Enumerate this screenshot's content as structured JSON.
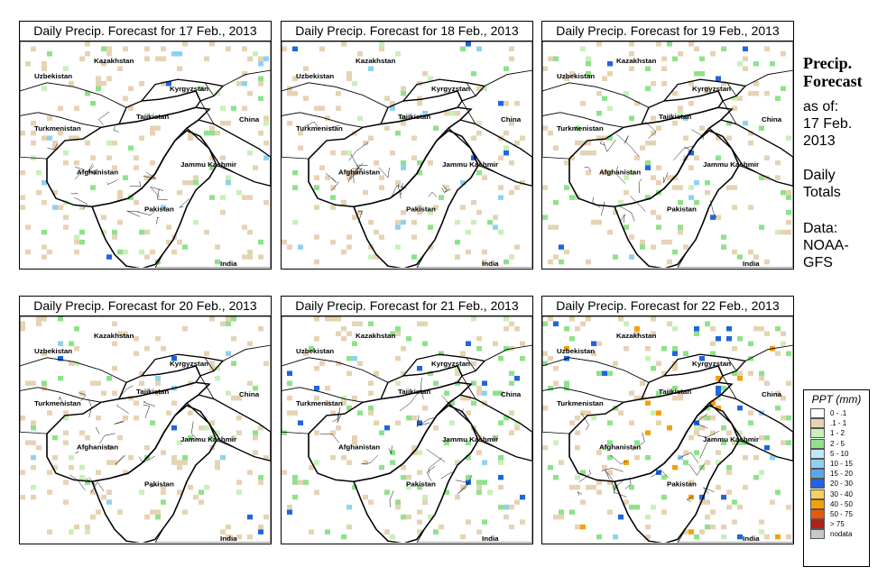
{
  "panels": [
    {
      "title": "Daily Precip. Forecast for  17 Feb., 2013",
      "intensity": 0.35,
      "seed": 17
    },
    {
      "title": "Daily Precip. Forecast for  18 Feb., 2013",
      "intensity": 0.3,
      "seed": 18
    },
    {
      "title": "Daily Precip. Forecast for  19 Feb., 2013",
      "intensity": 0.45,
      "seed": 19
    },
    {
      "title": "Daily Precip. Forecast for  20 Feb., 2013",
      "intensity": 0.35,
      "seed": 20
    },
    {
      "title": "Daily Precip. Forecast for  21 Feb., 2013",
      "intensity": 0.6,
      "seed": 21
    },
    {
      "title": "Daily Precip. Forecast for  22 Feb., 2013",
      "intensity": 0.85,
      "seed": 22
    }
  ],
  "map_labels": {
    "kazakhstan": "Kazakhstan",
    "uzbekistan": "Uzbekistan",
    "kyrgyzstan": "Kyrgyzstan",
    "tajikistan": "Tajikistan",
    "turkmenistan": "Turkmenistan",
    "china": "China",
    "afghanistan": "Afghanistan",
    "jammu_kashmir": "Jammu Kashmir",
    "pakistan": "Pakistan",
    "india": "India"
  },
  "side": {
    "heading_line1": "Precip.",
    "heading_line2": "Forecast",
    "asof_line1": "as of:",
    "asof_line2": "17 Feb.",
    "asof_line3": "2013",
    "daily_line1": "Daily",
    "daily_line2": "Totals",
    "data_line1": "Data:",
    "data_line2": "NOAA-",
    "data_line3": "GFS"
  },
  "legend": {
    "title": "PPT (mm)",
    "items": [
      {
        "label": "0 - .1",
        "color": "#ffffff"
      },
      {
        "label": ".1 - 1",
        "color": "#e6d3b3"
      },
      {
        "label": "1 - 2",
        "color": "#c8f0b8"
      },
      {
        "label": "2 - 5",
        "color": "#8ee28a"
      },
      {
        "label": "5 - 10",
        "color": "#bfe8f6"
      },
      {
        "label": "10 - 15",
        "color": "#8ed2f0"
      },
      {
        "label": "15 - 20",
        "color": "#5aa8e8"
      },
      {
        "label": "20 - 30",
        "color": "#1f64e0"
      },
      {
        "label": "30 - 40",
        "color": "#f5d15a"
      },
      {
        "label": "40 - 50",
        "color": "#f5a00a"
      },
      {
        "label": "50 - 75",
        "color": "#e85a0a"
      },
      {
        "label": "> 75",
        "color": "#b41e14"
      },
      {
        "label": "nodata",
        "color": "#c8c8c8"
      }
    ]
  }
}
